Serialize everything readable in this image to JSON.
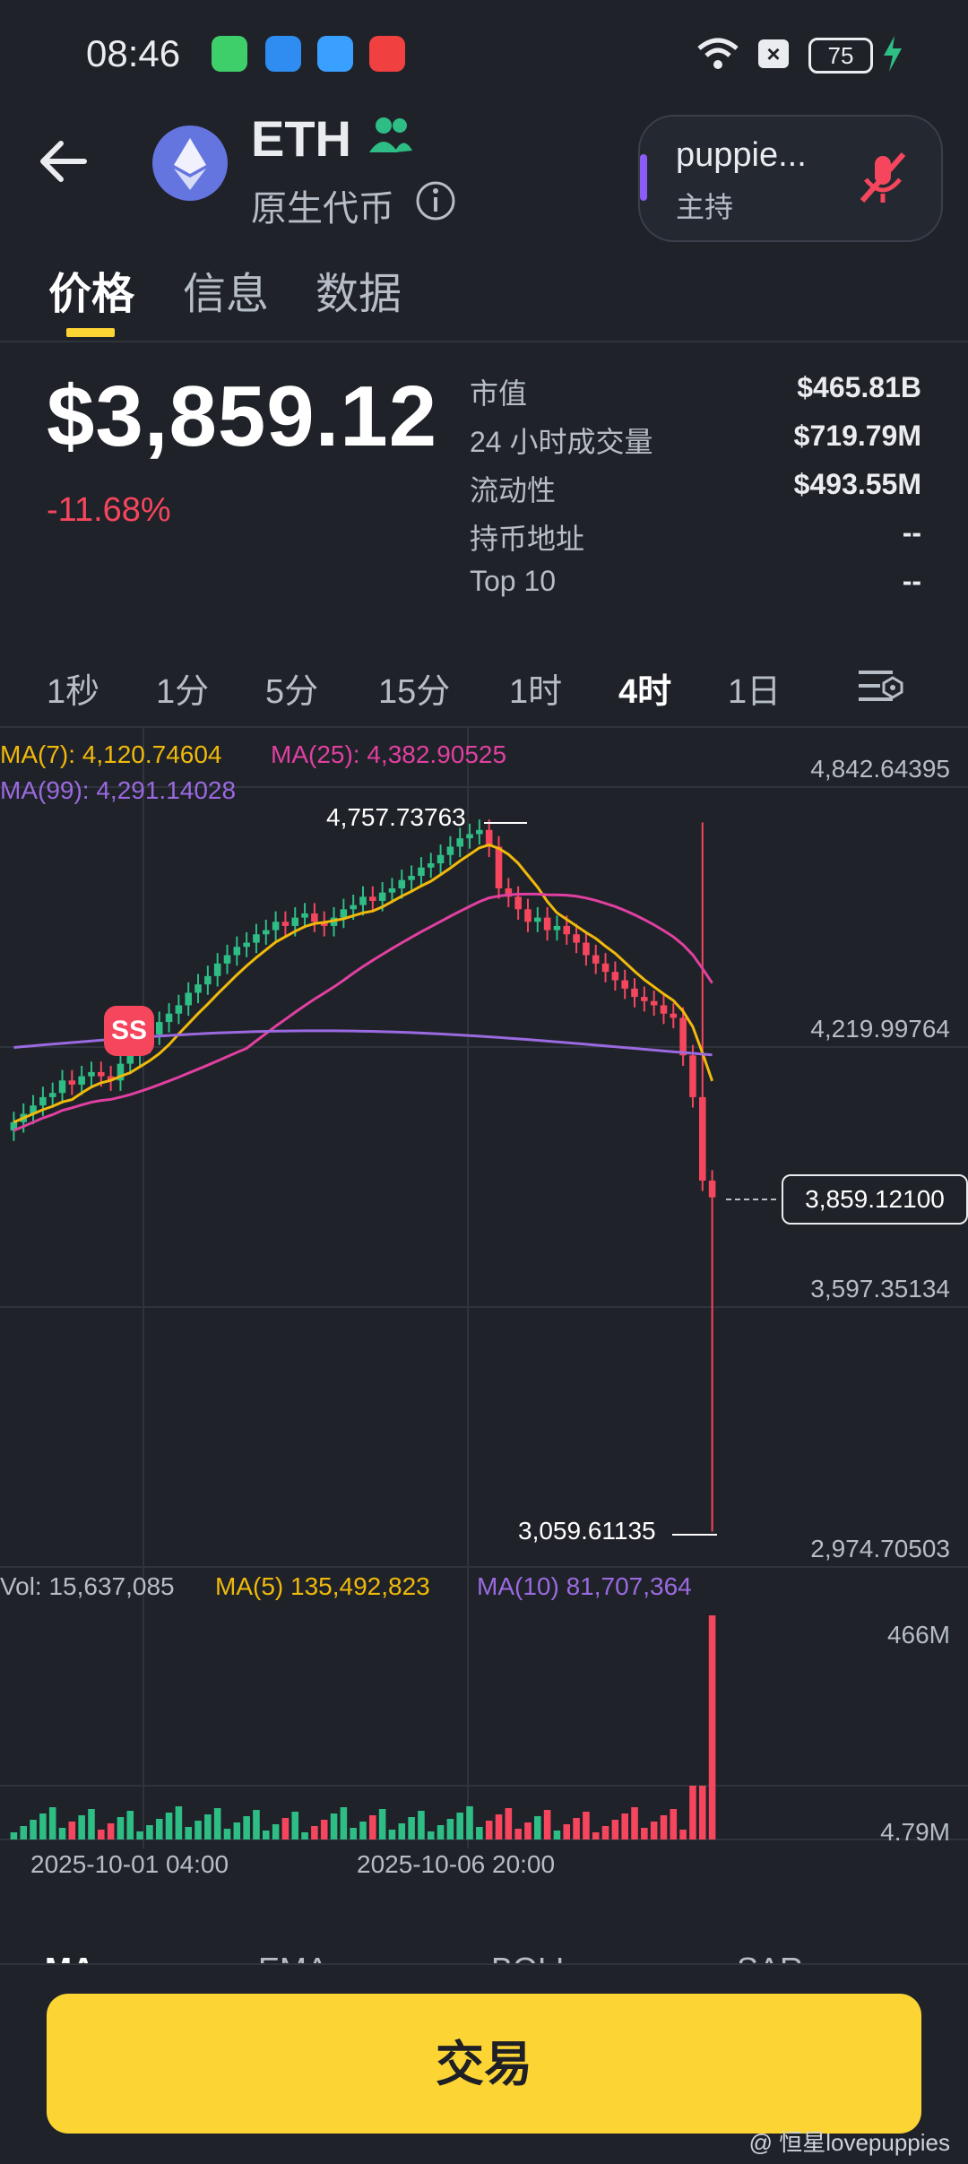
{
  "status": {
    "time": "08:46",
    "battery": "75"
  },
  "header": {
    "symbol": "ETH",
    "subtitle": "原生代币",
    "host_name": "puppie...",
    "host_role": "主持"
  },
  "tabs": [
    "价格",
    "信息",
    "数据"
  ],
  "price": {
    "value": "$3,859.12",
    "change": "-11.68%"
  },
  "stats": [
    {
      "label": "市值",
      "value": "$465.81B"
    },
    {
      "label": "24 小时成交量",
      "value": "$719.79M"
    },
    {
      "label": "流动性",
      "value": "$493.55M"
    },
    {
      "label": "持币地址",
      "value": "--"
    },
    {
      "label": "Top 10",
      "value": "--"
    }
  ],
  "intervals": [
    "1秒",
    "1分",
    "5分",
    "15分",
    "1时",
    "4时",
    "1日"
  ],
  "active_interval": "4时",
  "chart": {
    "ma7": "MA(7): 4,120.74604",
    "ma25": "MA(25): 4,382.90525",
    "ma99": "MA(99): 4,291.14028",
    "axis": [
      "4,842.64395",
      "4,219.99764",
      "3,597.35134",
      "2,974.70503"
    ],
    "high_label": "4,757.73763",
    "low_label": "3,059.61135",
    "current": "3,859.12100",
    "vol": "Vol: 15,637,085",
    "vol_ma5": "MA(5) 135,492,823",
    "vol_ma10": "MA(10) 81,707,364",
    "vol_axis": [
      "466M",
      "4.79M"
    ],
    "dates": [
      "2025-10-01 04:00",
      "2025-10-06 20:00"
    ],
    "colors": {
      "up": "#2ebd85",
      "down": "#f6465d",
      "ma7": "#f0b90b",
      "ma25": "#e040a0",
      "ma99": "#9b6ae0"
    }
  },
  "indicator_tabs": [
    "MA",
    "EMA",
    "BOLL",
    "SAR"
  ],
  "trade_button": "交易",
  "watermark": "@ 恒星lovepuppies",
  "chart_data": {
    "type": "candlestick",
    "title": "",
    "y_ticks": [
      4842.64395,
      4219.99764,
      3597.35134,
      2974.70503
    ],
    "high": 4757.73763,
    "low": 3059.61135,
    "last": 3859.121,
    "x_ticks": [
      "2025-10-01 04:00",
      "2025-10-06 20:00"
    ],
    "closes": [
      4040,
      4060,
      4080,
      4100,
      4110,
      4140,
      4130,
      4150,
      4160,
      4150,
      4140,
      4180,
      4200,
      4230,
      4250,
      4280,
      4300,
      4320,
      4350,
      4370,
      4390,
      4420,
      4440,
      4460,
      4470,
      4490,
      4500,
      4520,
      4510,
      4530,
      4540,
      4520,
      4510,
      4530,
      4550,
      4560,
      4580,
      4570,
      4590,
      4600,
      4620,
      4630,
      4650,
      4660,
      4680,
      4700,
      4720,
      4730,
      4740,
      4700,
      4600,
      4580,
      4550,
      4520,
      4530,
      4500,
      4510,
      4490,
      4470,
      4440,
      4420,
      4400,
      4380,
      4360,
      4340,
      4330,
      4320,
      4300,
      4290,
      4200,
      4100,
      3900,
      3860
    ],
    "volume_axis": [
      "466M",
      "4.79M"
    ]
  }
}
